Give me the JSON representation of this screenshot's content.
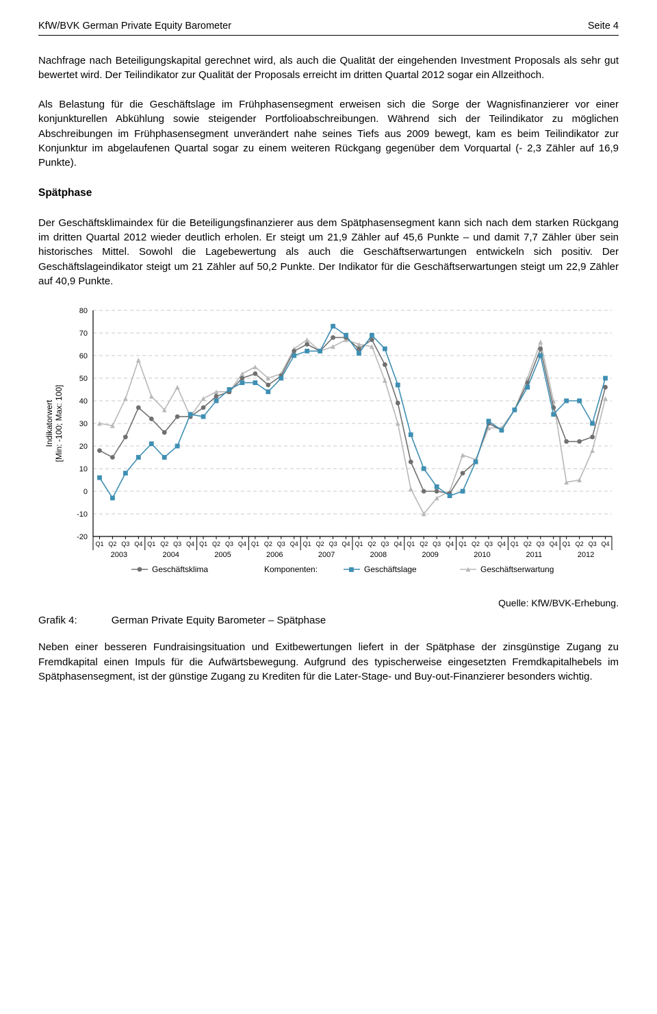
{
  "header": {
    "left": "KfW/BVK German Private Equity Barometer",
    "right": "Seite 4"
  },
  "paragraphs": {
    "p1": "Nachfrage nach Beteiligungskapital gerechnet wird, als auch die Qualität der eingehenden Investment Proposals als sehr gut bewertet wird. Der Teilindikator zur Qualität der Proposals erreicht im dritten Quartal 2012 sogar ein Allzeithoch.",
    "p2": "Als Belastung für die Geschäftslage im Frühphasensegment erweisen sich die Sorge der Wagnisfinanzierer vor einer konjunkturellen Abkühlung sowie steigender Portfolioabschreibungen. Während sich der Teilindikator zu möglichen Abschreibungen im Frühphasensegment unverändert nahe seines Tiefs aus 2009 bewegt, kam es beim Teilindikator zur Konjunktur im abgelaufenen Quartal sogar zu einem weiteren Rückgang gegenüber dem Vorquartal (- 2,3 Zähler auf 16,9 Punkte).",
    "sect_heading": "Spätphase",
    "p3": "Der Geschäftsklimaindex für die Beteiligungsfinanzierer aus dem Spätphasensegment kann sich nach dem starken Rückgang im dritten Quartal 2012 wieder deutlich erholen. Er steigt um 21,9 Zähler auf 45,6 Punkte – und damit 7,7 Zähler über sein historisches Mittel. Sowohl die Lagebewertung als auch die Geschäftserwartungen entwickeln sich positiv. Der Geschäftslageindikator steigt um 21 Zähler auf 50,2 Punkte. Der Indikator für die Geschäftserwartungen steigt um 22,9 Zähler auf 40,9 Punkte.",
    "p4": "Neben einer besseren Fundraisingsituation und Exitbewertungen liefert in der Spätphase der zinsgünstige Zugang zu Fremdkapital einen Impuls für die Aufwärtsbewegung. Aufgrund des typischerweise eingesetzten Fremdkapitalhebels im Spätphasensegment, ist der günstige Zugang zu Krediten für die Later-Stage- und Buy-out-Finanzierer besonders wichtig."
  },
  "grafik": {
    "label": "Grafik 4:",
    "title": "German Private Equity Barometer – Spätphase",
    "source": "Quelle: KfW/BVK-Erhebung."
  },
  "chart": {
    "type": "line",
    "ylabel": "Indikatorwert\n[Min: -100; Max: 100]",
    "ylim": [
      -20,
      80
    ],
    "ytick_step": 10,
    "x_quarters": [
      "Q1",
      "Q2",
      "Q3",
      "Q4"
    ],
    "x_years": [
      "2003",
      "2004",
      "2005",
      "2006",
      "2007",
      "2008",
      "2009",
      "2010",
      "2011",
      "2012"
    ],
    "background_color": "#ffffff",
    "grid_color": "#c8c8c8",
    "axis_color": "#000000",
    "label_fontsize": 11,
    "tick_fontsize": 9,
    "year_fontsize": 11,
    "line_width": 1.6,
    "marker_size": 3.4,
    "legend": {
      "items": [
        "Geschäftsklima",
        "Komponenten:",
        "Geschäftslage",
        "Geschäftserwartung"
      ]
    },
    "series": {
      "klima": {
        "color": "#707070",
        "marker": "circle",
        "values": [
          18,
          15,
          24,
          37,
          32,
          26,
          33,
          33,
          37,
          42,
          44,
          50,
          52,
          47,
          51,
          62,
          65,
          62,
          68,
          68,
          63,
          67,
          56,
          39,
          13,
          0,
          0,
          -1,
          8,
          13,
          30,
          27,
          36,
          48,
          63,
          37,
          22,
          22,
          24,
          46
        ]
      },
      "lage": {
        "color": "#3f8fb3",
        "marker": "square",
        "values": [
          6,
          -3,
          8,
          15,
          21,
          15,
          20,
          34,
          33,
          40,
          45,
          48,
          48,
          44,
          50,
          60,
          62,
          62,
          73,
          69,
          61,
          69,
          63,
          47,
          25,
          10,
          2,
          -2,
          0,
          13,
          31,
          27,
          36,
          46,
          60,
          34,
          40,
          40,
          30,
          50
        ]
      },
      "erwartung": {
        "color": "#b8b8b8",
        "marker": "triangle",
        "values": [
          30,
          29,
          41,
          58,
          42,
          36,
          46,
          33,
          41,
          44,
          44,
          52,
          55,
          50,
          52,
          63,
          67,
          62,
          64,
          67,
          65,
          64,
          49,
          30,
          1,
          -10,
          -3,
          0,
          16,
          14,
          28,
          28,
          36,
          50,
          66,
          40,
          4,
          5,
          18,
          41
        ]
      }
    }
  }
}
